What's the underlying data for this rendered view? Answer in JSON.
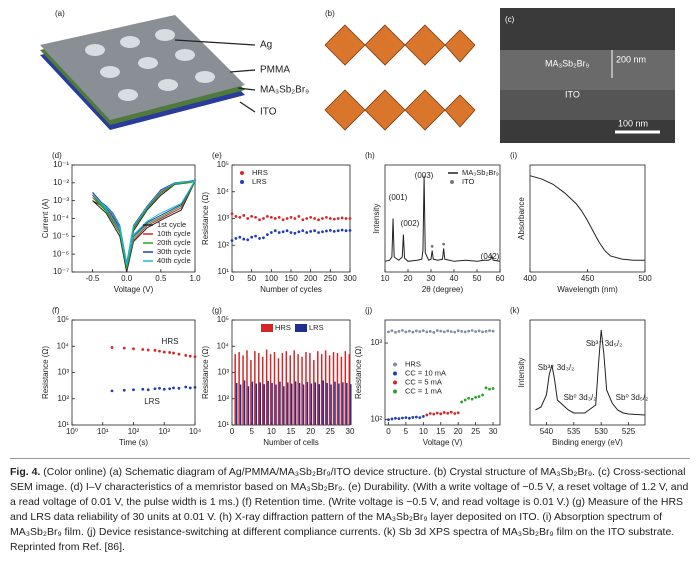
{
  "figure": {
    "panels": [
      {
        "label": "(a)",
        "texts": [
          "Ag",
          "PMMA",
          "MA₃Sb₂Br₉",
          "ITO"
        ]
      },
      {
        "label": "(b)"
      },
      {
        "label": "(c)",
        "texts": [
          "MA₃Sb₂Br₉",
          "200 nm",
          "ITO",
          "100 nm"
        ]
      }
    ],
    "caption_label": "Fig. 4.",
    "caption": "(Color online) (a) Schematic diagram of Ag/PMMA/MA₃Sb₂Br₉/ITO device structure. (b) Crystal structure of MA₃Sb₂Br₉. (c) Cross-sectional SEM image. (d) I–V characteristics of a memristor based on MA₃Sb₂Br₉. (e) Durability. (With a write voltage of −0.5 V, a reset voltage of 1.2 V, and a read voltage of 0.01 V, the pulse width is 1 ms.) (f) Retention time. (Write voltage is −0.5 V, and read voltage is 0.01 V.) (g) Measure of the HRS and LRS data reliability of 30 units at 0.01 V. (h) X-ray diffraction pattern of the MA₃Sb₂Br₉ layer deposited on ITO. (i) Absorption spectrum of MA₃Sb₂Br₉ film. (j) Device resistance-switching at different compliance currents. (k) Sb 3d XPS spectra of MA₃Sb₂Br₉ film on the ITO substrate. Reprinted from Ref. [86]."
  },
  "chart_data": [
    {
      "type": "line",
      "label": "(d)",
      "xlabel": "Voltage (V)",
      "ylabel": "Current (A)",
      "ylog": true,
      "legend": "lower right",
      "xlim": [
        -0.8,
        1.0
      ],
      "xticks": [
        -0.5,
        {
          "value": 0,
          "label": "0.0"
        },
        0.5,
        {
          "value": 1,
          "label": "1.0"
        }
      ],
      "ylim": [
        1e-07,
        0.1
      ],
      "yticks": [
        {
          "value": 1e-07,
          "label": "10⁻⁷"
        },
        {
          "value": 1e-06,
          "label": "10⁻⁶"
        },
        {
          "value": 1e-05,
          "label": "10⁻⁵"
        },
        {
          "value": 0.0001,
          "label": "10⁻⁴"
        },
        {
          "value": 0.001,
          "label": "10⁻³"
        },
        {
          "value": 0.01,
          "label": "10⁻²"
        },
        {
          "value": 0.1,
          "label": "10⁻¹"
        }
      ],
      "x": [
        -0.5,
        -0.4,
        -0.3,
        -0.2,
        -0.1,
        0,
        0.1,
        0.3,
        0.5,
        0.7,
        0.9,
        1.0,
        0.8,
        0.5,
        0.3,
        0.1,
        0,
        -0.1,
        -0.3,
        -0.5
      ],
      "series": [
        {
          "name": "1st cycle",
          "color": "#222222",
          "values": [
            0.001,
            0.0006,
            0.0003,
            0.0001,
            2e-05,
            1e-07,
            2e-05,
            0.0003,
            0.002,
            0.008,
            0.01,
            0.012,
            0.0003,
            8e-05,
            3e-05,
            5e-06,
            1e-07,
            1e-05,
            0.0002,
            0.001
          ]
        },
        {
          "name": "10th cycle",
          "color": "#d62728",
          "values": [
            0.002,
            0.0008,
            0.0004,
            0.00015,
            3e-05,
            2e-07,
            3e-05,
            0.0004,
            0.003,
            0.009,
            0.011,
            0.013,
            0.0004,
            0.0001,
            4e-05,
            6e-06,
            2e-07,
            2e-05,
            0.0003,
            0.002
          ]
        },
        {
          "name": "20th cycle",
          "color": "#2ca02c",
          "values": [
            0.0015,
            0.0007,
            0.0003,
            0.00012,
            2.5e-05,
            1.5e-07,
            2.5e-05,
            0.00035,
            0.0025,
            0.0085,
            0.01,
            0.012,
            0.0005,
            0.00012,
            5e-05,
            8e-06,
            1.5e-07,
            1.5e-05,
            0.00025,
            0.0015
          ]
        },
        {
          "name": "30th cycle",
          "color": "#1f3fb4",
          "values": [
            0.003,
            0.001,
            0.0005,
            0.0002,
            4e-05,
            3e-07,
            4e-05,
            0.0005,
            0.004,
            0.01,
            0.012,
            0.014,
            0.0006,
            0.00015,
            6e-05,
            1e-05,
            3e-07,
            3e-05,
            0.0004,
            0.003
          ]
        },
        {
          "name": "40th cycle",
          "color": "#17becf",
          "values": [
            0.0025,
            0.0009,
            0.00045,
            0.00018,
            3.5e-05,
            2.5e-07,
            3.5e-05,
            0.00045,
            0.0035,
            0.0095,
            0.0115,
            0.0135,
            0.0007,
            0.0002,
            7e-05,
            1.2e-05,
            2.5e-07,
            2.5e-05,
            0.00035,
            0.0025
          ]
        }
      ]
    },
    {
      "type": "scatter",
      "label": "(e)",
      "xlabel": "Number of cycles",
      "ylabel": "Resistance (Ω)",
      "ylog": true,
      "legend": "upper left",
      "xlim": [
        0,
        300
      ],
      "xticks": [
        0,
        50,
        100,
        150,
        200,
        250,
        300
      ],
      "ylim": [
        10,
        100000
      ],
      "yticks": [
        {
          "value": 10,
          "label": "10¹"
        },
        {
          "value": 100,
          "label": "10²"
        },
        {
          "value": 1000,
          "label": "10³"
        },
        {
          "value": 10000,
          "label": "10⁴"
        },
        {
          "value": 100000,
          "label": "10⁵"
        }
      ],
      "x": [
        0,
        10,
        20,
        30,
        40,
        50,
        60,
        70,
        80,
        90,
        100,
        110,
        120,
        130,
        140,
        150,
        160,
        170,
        180,
        190,
        200,
        210,
        220,
        230,
        240,
        250,
        260,
        270,
        280,
        290,
        300
      ],
      "series": [
        {
          "name": "HRS",
          "color": "#d62728",
          "values": [
            1500,
            1200,
            1100,
            1300,
            1000,
            1200,
            1100,
            900,
            1000,
            1200,
            1100,
            1000,
            1100,
            900,
            1000,
            1100,
            1000,
            1200,
            900,
            1000,
            1100,
            1000,
            900,
            1000,
            1100,
            1000,
            950,
            1000,
            1050,
            1000,
            1000
          ]
        },
        {
          "name": "LRS",
          "color": "#1f3fb4",
          "values": [
            150,
            180,
            200,
            170,
            160,
            200,
            220,
            180,
            190,
            250,
            300,
            350,
            300,
            320,
            350,
            300,
            280,
            320,
            350,
            300,
            330,
            350,
            300,
            320,
            340,
            360,
            330,
            350,
            370,
            350,
            360
          ]
        }
      ]
    },
    {
      "type": "line",
      "label": "(h)",
      "xlabel": "2θ (degree)",
      "ylabel": "Intensity",
      "legend": "upper right",
      "xlim": [
        10,
        60
      ],
      "xticks": [
        10,
        20,
        30,
        40,
        50,
        60
      ],
      "ylim": [
        0,
        100
      ],
      "yticks": [],
      "annotations": [
        "(001)",
        "(002)",
        "(003)",
        "(042)"
      ],
      "x": [
        10,
        12,
        13,
        13.5,
        14,
        16,
        17.5,
        18,
        18.5,
        20,
        24,
        26,
        26.5,
        27,
        27.5,
        29,
        30,
        30.5,
        31,
        33,
        35,
        35.5,
        36,
        40,
        45,
        50,
        53,
        55,
        56,
        56.5,
        57,
        60
      ],
      "series": [
        {
          "name": "MA₃Sb₂Br₉",
          "color": "#222222",
          "values": [
            10,
            11,
            14,
            50,
            14,
            11,
            14,
            35,
            13,
            10,
            11,
            12,
            20,
            90,
            18,
            11,
            12,
            20,
            12,
            11,
            12,
            22,
            12,
            10,
            11,
            10,
            11,
            11,
            12,
            15,
            11,
            10
          ]
        },
        {
          "name": "ITO",
          "color": "#777777",
          "mode": "markers",
          "x": [
            30.5,
            35.5
          ],
          "values": [
            24,
            26
          ]
        }
      ]
    },
    {
      "type": "line",
      "label": "(i)",
      "xlabel": "Wavelength (nm)",
      "ylabel": "Absorbance",
      "xlim": [
        400,
        500
      ],
      "xticks": [
        400,
        450,
        500
      ],
      "ylim": [
        0,
        100
      ],
      "yticks": [],
      "x": [
        400,
        410,
        420,
        430,
        440,
        445,
        450,
        455,
        460,
        465,
        470,
        480,
        490,
        500
      ],
      "series": [
        {
          "name": "Absorbance",
          "color": "#222222",
          "values": [
            90,
            87,
            82,
            74,
            64,
            57,
            48,
            38,
            28,
            20,
            15,
            12,
            11,
            11
          ]
        }
      ]
    },
    {
      "type": "scatter",
      "label": "(f)",
      "xlabel": "Time (s)",
      "ylabel": "Resistance (Ω)",
      "ylog": true,
      "xlog": true,
      "annotations": [
        "HRS",
        "LRS"
      ],
      "xlim": [
        1,
        10000
      ],
      "xticks": [
        {
          "value": 1,
          "label": "10⁰"
        },
        {
          "value": 10,
          "label": "10¹"
        },
        {
          "value": 100,
          "label": "10²"
        },
        {
          "value": 1000,
          "label": "10³"
        },
        {
          "value": 10000,
          "label": "10⁴"
        }
      ],
      "ylim": [
        10,
        100000
      ],
      "yticks": [
        {
          "value": 10,
          "label": "10¹"
        },
        {
          "value": 100,
          "label": "10²"
        },
        {
          "value": 1000,
          "label": "10³"
        },
        {
          "value": 10000,
          "label": "10⁴"
        },
        {
          "value": 100000,
          "label": "10⁵"
        }
      ],
      "x": [
        20,
        50,
        100,
        200,
        300,
        500,
        700,
        1000,
        1500,
        2000,
        3000,
        5000,
        7000,
        10000
      ],
      "series": [
        {
          "name": "HRS",
          "color": "#d62728",
          "values": [
            9000,
            8500,
            8000,
            7500,
            7200,
            7000,
            6500,
            6000,
            5800,
            5500,
            5000,
            4500,
            4200,
            4000
          ]
        },
        {
          "name": "LRS",
          "color": "#1f3fb4",
          "values": [
            200,
            210,
            220,
            230,
            220,
            240,
            250,
            230,
            240,
            260,
            250,
            280,
            260,
            270
          ]
        }
      ]
    },
    {
      "type": "bar",
      "label": "(g)",
      "xlabel": "Number of cells",
      "ylabel": "Resistance (Ω)",
      "ylog": true,
      "legend": "upper center",
      "xlim": [
        0,
        30
      ],
      "xticks": [
        0,
        5,
        10,
        15,
        20,
        25,
        30
      ],
      "ylim": [
        10,
        100000
      ],
      "yticks": [
        {
          "value": 10,
          "label": "10¹"
        },
        {
          "value": 100,
          "label": "10²"
        },
        {
          "value": 1000,
          "label": "10³"
        },
        {
          "value": 10000,
          "label": "10⁴"
        },
        {
          "value": 100000,
          "label": "10⁵"
        }
      ],
      "x": [
        1,
        2,
        3,
        4,
        5,
        6,
        7,
        8,
        9,
        10,
        11,
        12,
        13,
        14,
        15,
        16,
        17,
        18,
        19,
        20,
        21,
        22,
        23,
        24,
        25,
        26,
        27,
        28,
        29,
        30
      ],
      "series": [
        {
          "name": "HRS",
          "color": "#d62728",
          "values": [
            5000,
            6000,
            4500,
            7000,
            3000,
            6500,
            5500,
            4000,
            7500,
            5000,
            6000,
            3500,
            5500,
            6500,
            4500,
            7000,
            5000,
            4000,
            6000,
            5500,
            3000,
            6500,
            5000,
            7000,
            4500,
            6000,
            5500,
            4000,
            6500,
            5000
          ]
        },
        {
          "name": "LRS",
          "color": "#1f2f8f",
          "values": [
            400,
            350,
            500,
            300,
            450,
            380,
            420,
            360,
            480,
            400,
            350,
            450,
            300,
            420,
            380,
            460,
            400,
            350,
            440,
            380,
            420,
            360,
            500,
            400,
            350,
            450,
            380,
            420,
            400,
            360
          ]
        }
      ]
    },
    {
      "type": "scatter",
      "label": "(j)",
      "xlabel": "Voltage (V)",
      "ylabel": "Resistance (Ω)",
      "ylog": true,
      "legend": "center left",
      "xlim": [
        -1,
        32
      ],
      "xticks": [
        0,
        5,
        10,
        15,
        20,
        25,
        30
      ],
      "ylim": [
        85,
        2000
      ],
      "yticks": [
        {
          "value": 100,
          "label": "10²"
        },
        {
          "value": 1000,
          "label": "10³"
        }
      ],
      "series": [
        {
          "name": "HRS",
          "color": "#8090a0",
          "x": [
            0,
            1,
            2,
            3,
            4,
            5,
            6,
            7,
            8,
            9,
            10,
            11,
            12,
            13,
            14,
            15,
            16,
            17,
            18,
            19,
            20,
            21,
            22,
            23,
            24,
            25,
            26,
            27,
            28,
            29,
            30
          ],
          "values": [
            1400,
            1450,
            1380,
            1420,
            1460,
            1400,
            1430,
            1390,
            1440,
            1410,
            1450,
            1400,
            1420,
            1380,
            1460,
            1430,
            1400,
            1440,
            1410,
            1390,
            1450,
            1420,
            1400,
            1430,
            1460,
            1410,
            1440,
            1400,
            1420,
            1450,
            1430
          ]
        },
        {
          "name": "CC = 10 mA",
          "color": "#1f3fb4",
          "x": [
            0,
            1,
            2,
            3,
            4,
            5,
            6,
            7,
            8,
            9,
            10
          ],
          "values": [
            100,
            102,
            104,
            103,
            105,
            106,
            104,
            107,
            108,
            106,
            110
          ]
        },
        {
          "name": "CC = 5 mA",
          "color": "#d62728",
          "x": [
            11,
            12,
            13,
            14,
            15,
            16,
            17,
            18,
            19,
            20
          ],
          "values": [
            115,
            120,
            118,
            122,
            119,
            124,
            121,
            125,
            120,
            123
          ]
        },
        {
          "name": "CC = 1 mA",
          "color": "#2ca02c",
          "x": [
            21,
            22,
            23,
            24,
            25,
            26,
            27,
            28,
            29,
            30
          ],
          "values": [
            170,
            180,
            190,
            185,
            195,
            200,
            210,
            260,
            250,
            255
          ]
        }
      ]
    },
    {
      "type": "line",
      "label": "(k)",
      "xlabel": "Binding energy (eV)",
      "ylabel": "Intensity",
      "annotations": [
        "Sb³⁺ 3d₃/₂",
        "Sb⁰ 3d₃/₂",
        "Sb³⁺ 3d₅/₂",
        "Sb⁰ 3d₅/₂"
      ],
      "xlim": [
        543,
        522
      ],
      "xticks": [
        540,
        535,
        530,
        525
      ],
      "ylim": [
        0,
        105
      ],
      "yticks": [],
      "x": [
        542,
        541,
        540,
        539.5,
        539,
        538.5,
        538,
        537,
        536,
        535,
        533,
        531,
        530.5,
        530,
        529.5,
        529,
        528,
        527,
        526,
        525,
        522
      ],
      "series": [
        {
          "name": "Sb 3d",
          "color": "#222222",
          "values": [
            15,
            18,
            30,
            50,
            60,
            45,
            25,
            20,
            15,
            12,
            12,
            20,
            60,
            95,
            70,
            35,
            22,
            15,
            12,
            11,
            10
          ]
        }
      ]
    }
  ]
}
